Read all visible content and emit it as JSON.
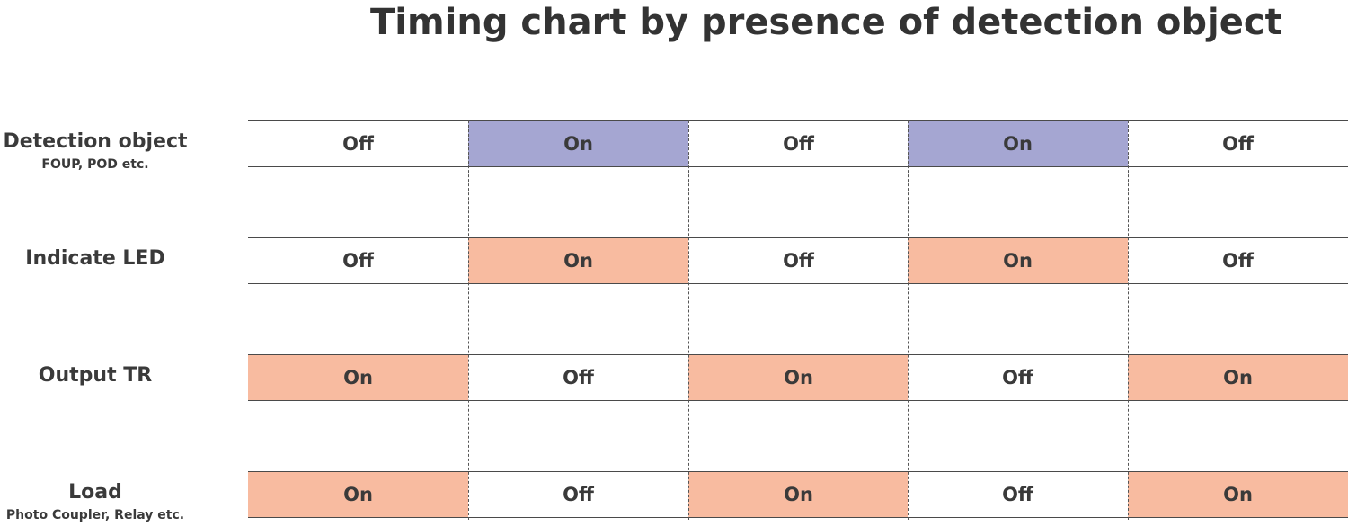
{
  "title": "Timing chart by presence of detection object",
  "colors": {
    "detection_on": "#a5a6d2",
    "on": "#f8bba0",
    "off": "#ffffff"
  },
  "rows": [
    {
      "label": "Detection object",
      "sublabel": "FOUP, POD etc.",
      "states": [
        "Off",
        "On",
        "Off",
        "On",
        "Off"
      ]
    },
    {
      "label": "Indicate LED",
      "sublabel": "",
      "states": [
        "Off",
        "On",
        "Off",
        "On",
        "Off"
      ]
    },
    {
      "label": "Output TR",
      "sublabel": "",
      "states": [
        "On",
        "Off",
        "On",
        "Off",
        "On"
      ]
    },
    {
      "label": "Load",
      "sublabel": "Photo Coupler, Relay etc.",
      "states": [
        "On",
        "Off",
        "On",
        "Off",
        "On"
      ]
    }
  ]
}
